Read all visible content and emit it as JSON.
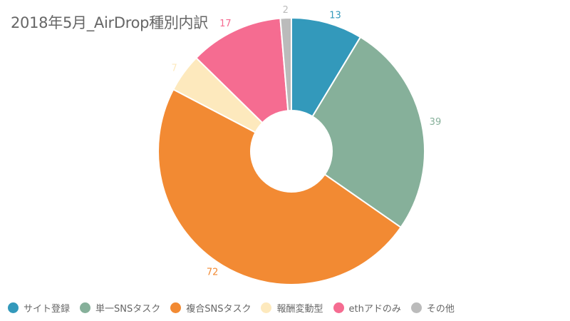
{
  "chart_data": {
    "type": "pie",
    "variant": "donut",
    "title": "2018年5月_AirDrop種別内訳",
    "categories": [
      "サイト登録",
      "単一SNSタスク",
      "複合SNSタスク",
      "報酬変動型",
      "ethアドのみ",
      "その他"
    ],
    "values": [
      13,
      39,
      72,
      7,
      17,
      2
    ],
    "colors": [
      "#3399bb",
      "#86b09a",
      "#f28a33",
      "#fde9bd",
      "#f56c91",
      "#bbbbbb"
    ],
    "legend_position": "bottom-left",
    "data_labels": true
  }
}
